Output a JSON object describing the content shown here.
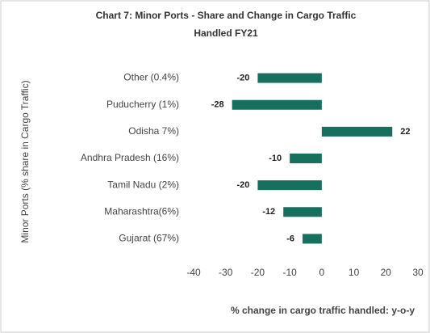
{
  "chart_data": {
    "type": "bar",
    "orientation": "horizontal",
    "title": "Chart 7: Minor Ports - Share and Change in Cargo Traffic Handled FY21",
    "x_label": "% change in cargo traffic handled: y-o-y",
    "y_label": "Minor Ports (% share in Cargo Traffic)",
    "categories": [
      "Other (0.4%)",
      "Puducherry (1%)",
      "Odisha 7%)",
      "Andhra Pradesh (16%)",
      "Tamil Nadu (2%)",
      "Maharashtra(6%)",
      "Gujarat (67%)"
    ],
    "values": [
      -20,
      -28,
      22,
      -10,
      -20,
      -12,
      -6
    ],
    "color": "#17705e",
    "xlim": [
      -40,
      30
    ],
    "xticks": [
      -40,
      -30,
      -20,
      -10,
      0,
      10,
      20,
      30
    ],
    "grid": false
  }
}
